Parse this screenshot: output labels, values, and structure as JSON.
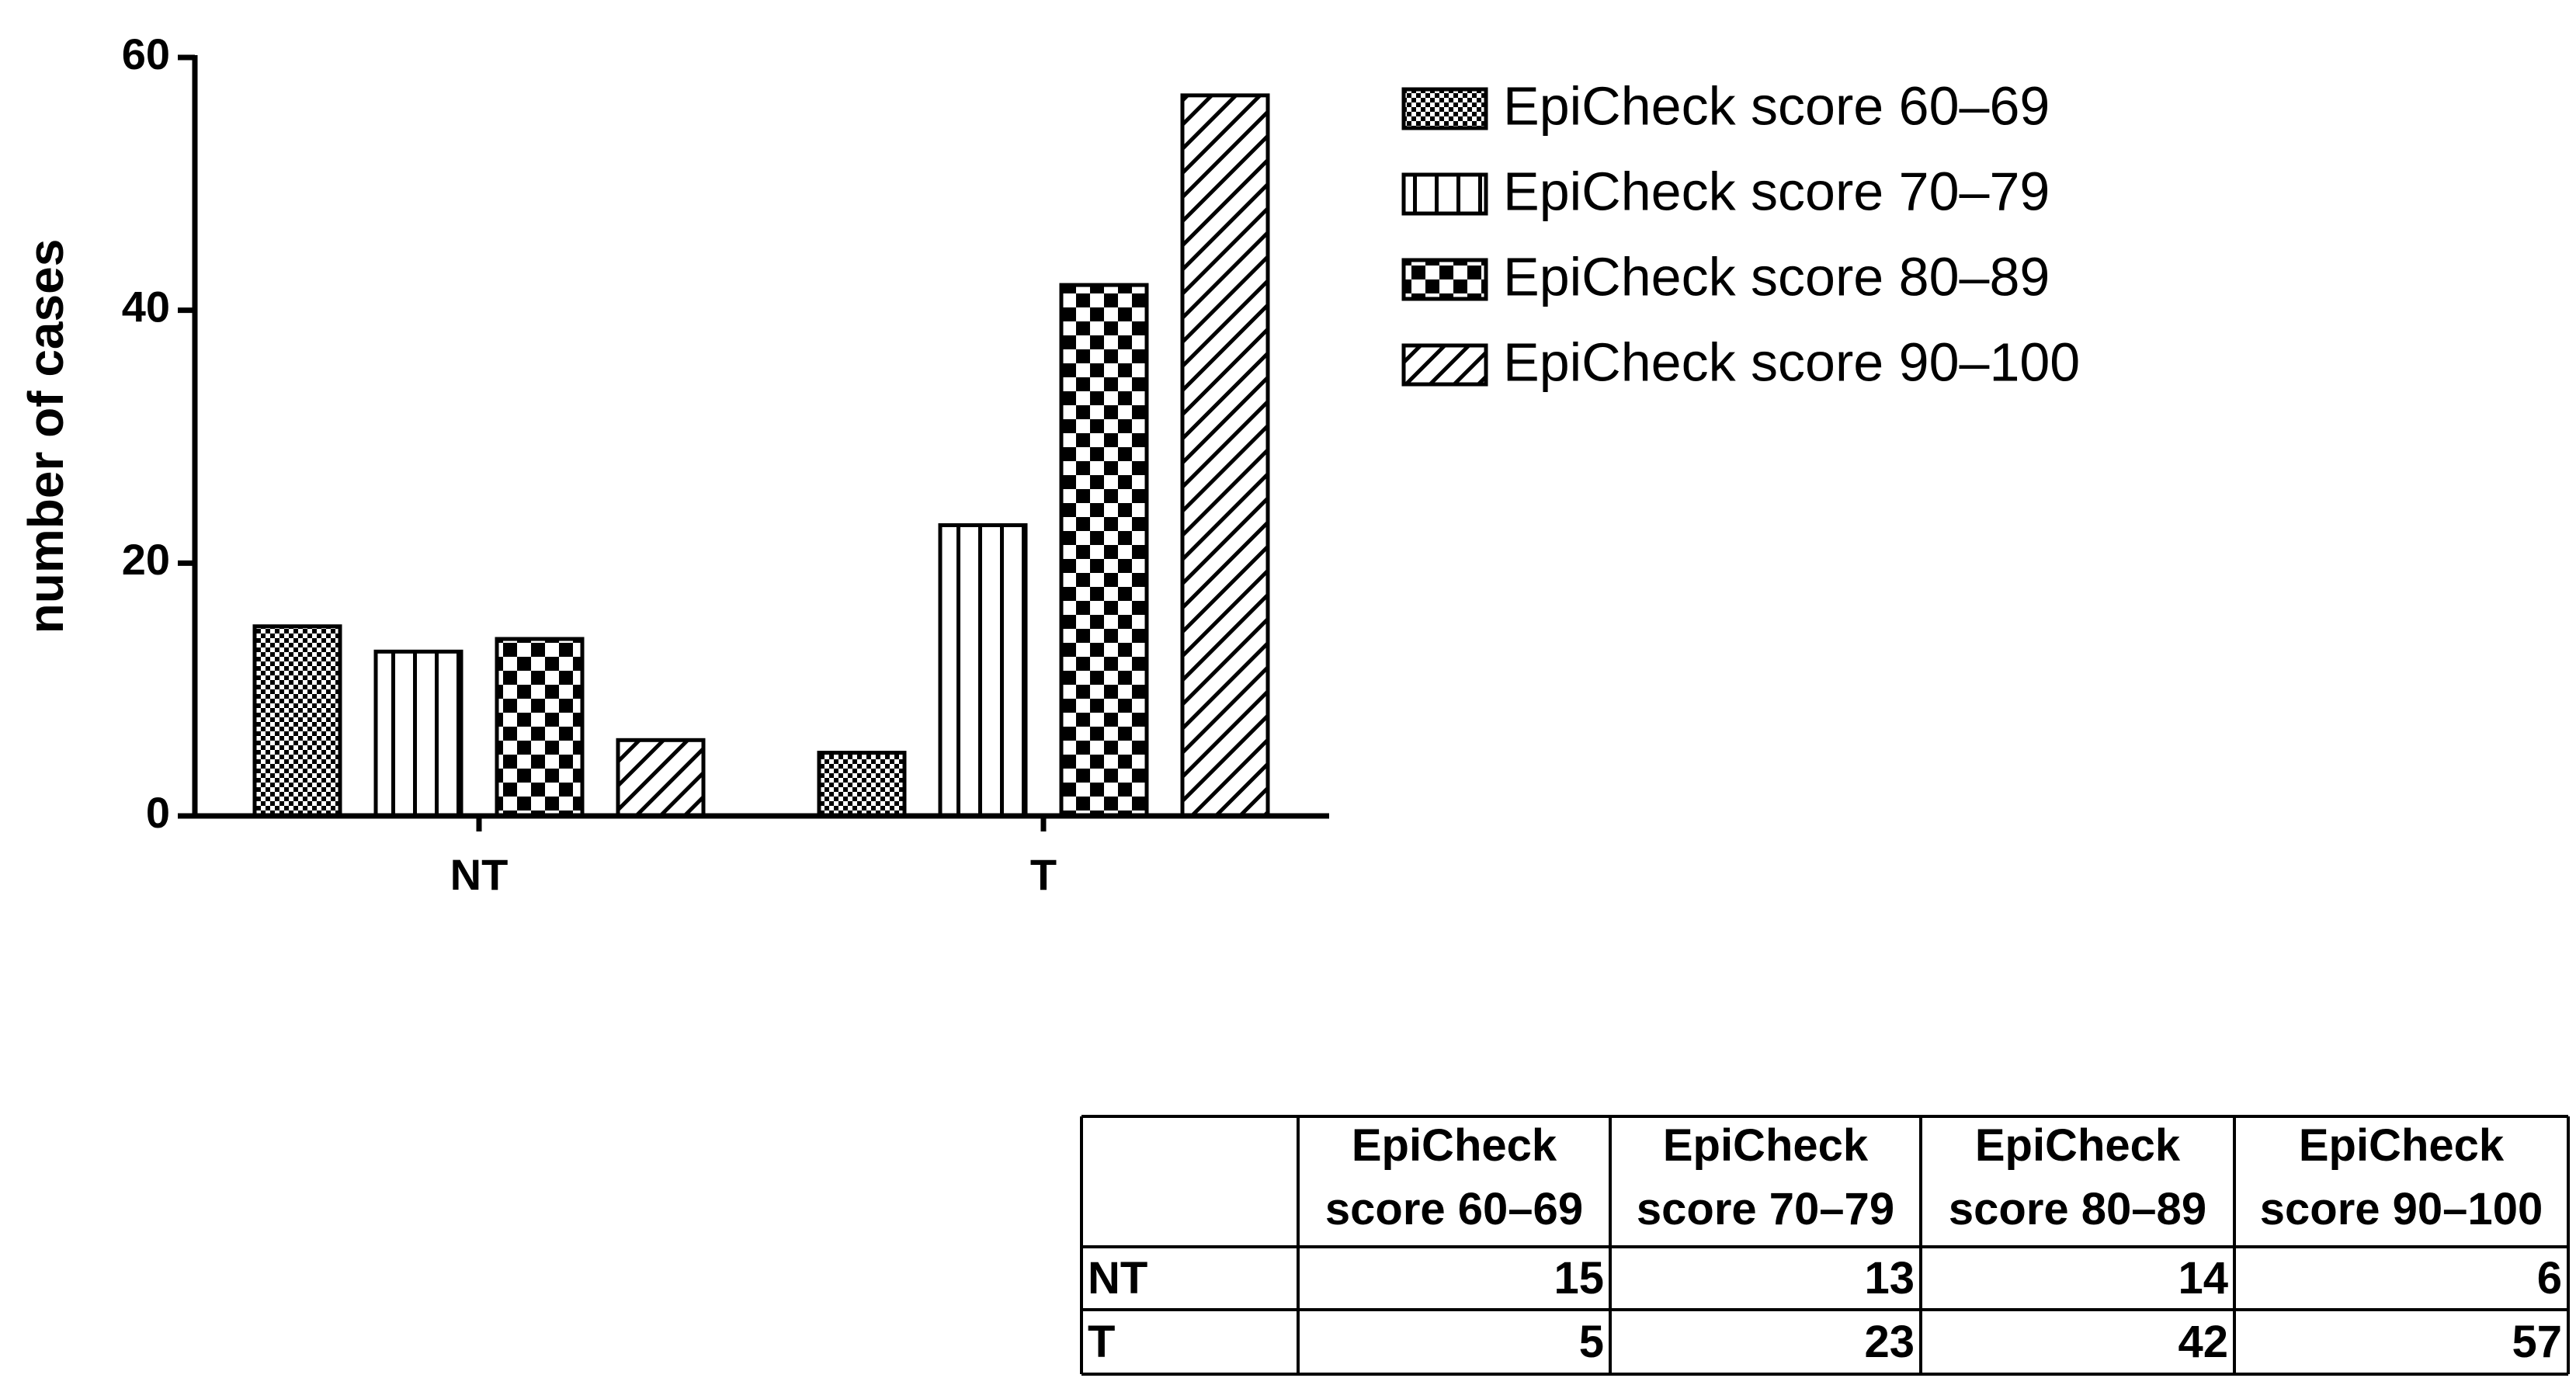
{
  "chart_data": {
    "type": "bar",
    "categories": [
      "NT",
      "T"
    ],
    "y_label": "number of cases",
    "ylim": [
      0,
      60
    ],
    "yticks": [
      0,
      20,
      40,
      60
    ],
    "series": [
      {
        "name": "EpiCheck score 60–69",
        "color": "#000000",
        "pattern": "fine-checker",
        "values": [
          15,
          5
        ]
      },
      {
        "name": "EpiCheck score 70–79",
        "color": "#000000",
        "pattern": "vertical-lines",
        "values": [
          13,
          23
        ]
      },
      {
        "name": "EpiCheck score 80–89",
        "color": "#000000",
        "pattern": "coarse-checker",
        "values": [
          14,
          42
        ]
      },
      {
        "name": "EpiCheck score 90–100",
        "color": "#000000",
        "pattern": "diagonal-lines",
        "values": [
          6,
          57
        ]
      }
    ],
    "legend": "top-right",
    "table": true
  }
}
